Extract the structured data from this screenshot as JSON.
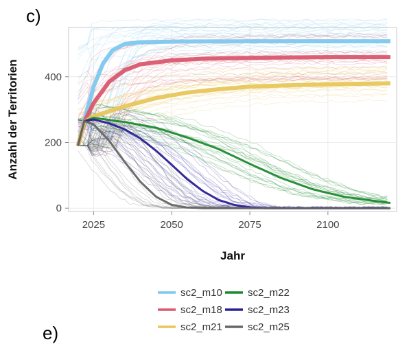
{
  "panel_label": "c)",
  "next_panel_label": "e)",
  "chart_data": {
    "type": "line",
    "title": "",
    "xlabel": "Jahr",
    "ylabel": "Anzahl der Territorien",
    "xlim": [
      2017,
      2122
    ],
    "ylim": [
      -10,
      550
    ],
    "x_ticks": [
      2025,
      2050,
      2075,
      2100
    ],
    "y_ticks": [
      0,
      200,
      400
    ],
    "grid": true,
    "legend_position": "bottom",
    "series": [
      {
        "name": "sc2_m10",
        "color": "#7ec8ee",
        "points": [
          [
            2020,
            190
          ],
          [
            2022,
            265
          ],
          [
            2025,
            370
          ],
          [
            2028,
            440
          ],
          [
            2031,
            480
          ],
          [
            2035,
            500
          ],
          [
            2040,
            505
          ],
          [
            2050,
            507
          ],
          [
            2075,
            508
          ],
          [
            2100,
            508
          ],
          [
            2120,
            508
          ]
        ]
      },
      {
        "name": "sc2_m18",
        "color": "#d9596e",
        "points": [
          [
            2020,
            190
          ],
          [
            2022,
            262
          ],
          [
            2025,
            320
          ],
          [
            2030,
            385
          ],
          [
            2035,
            420
          ],
          [
            2040,
            438
          ],
          [
            2050,
            450
          ],
          [
            2060,
            455
          ],
          [
            2080,
            458
          ],
          [
            2100,
            460
          ],
          [
            2120,
            460
          ]
        ]
      },
      {
        "name": "sc2_m21",
        "color": "#e8c65a",
        "points": [
          [
            2020,
            190
          ],
          [
            2022,
            262
          ],
          [
            2025,
            280
          ],
          [
            2035,
            310
          ],
          [
            2045,
            335
          ],
          [
            2055,
            352
          ],
          [
            2065,
            362
          ],
          [
            2075,
            370
          ],
          [
            2090,
            375
          ],
          [
            2105,
            378
          ],
          [
            2120,
            380
          ]
        ]
      },
      {
        "name": "sc2_m22",
        "color": "#1e8a2e",
        "points": [
          [
            2020,
            190
          ],
          [
            2022,
            265
          ],
          [
            2025,
            275
          ],
          [
            2035,
            262
          ],
          [
            2045,
            245
          ],
          [
            2055,
            215
          ],
          [
            2065,
            180
          ],
          [
            2075,
            135
          ],
          [
            2085,
            92
          ],
          [
            2095,
            58
          ],
          [
            2105,
            35
          ],
          [
            2115,
            22
          ],
          [
            2120,
            16
          ]
        ]
      },
      {
        "name": "sc2_m23",
        "color": "#2a2196",
        "points": [
          [
            2020,
            190
          ],
          [
            2022,
            265
          ],
          [
            2025,
            270
          ],
          [
            2030,
            258
          ],
          [
            2035,
            240
          ],
          [
            2040,
            212
          ],
          [
            2045,
            175
          ],
          [
            2050,
            132
          ],
          [
            2055,
            88
          ],
          [
            2060,
            52
          ],
          [
            2065,
            25
          ],
          [
            2070,
            10
          ],
          [
            2075,
            3
          ],
          [
            2080,
            0
          ],
          [
            2100,
            0
          ],
          [
            2120,
            0
          ]
        ]
      },
      {
        "name": "sc2_m25",
        "color": "#666666",
        "points": [
          [
            2020,
            190
          ],
          [
            2022,
            265
          ],
          [
            2025,
            255
          ],
          [
            2030,
            205
          ],
          [
            2035,
            140
          ],
          [
            2040,
            80
          ],
          [
            2045,
            35
          ],
          [
            2050,
            10
          ],
          [
            2055,
            2
          ],
          [
            2060,
            0
          ],
          [
            2120,
            0
          ]
        ]
      }
    ]
  }
}
